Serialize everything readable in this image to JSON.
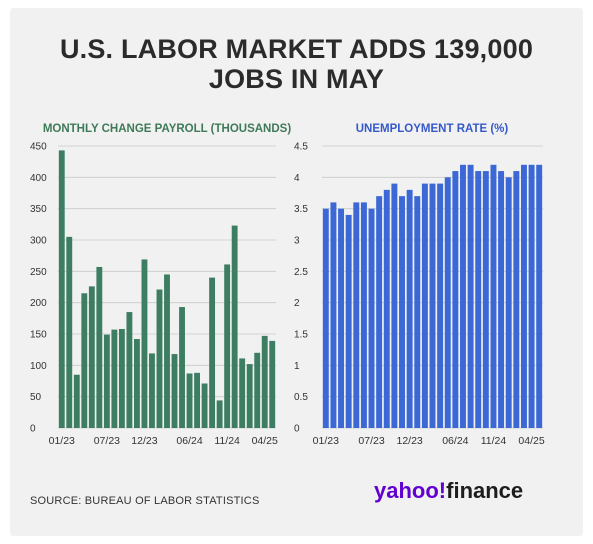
{
  "title_line1": "U.S. LABOR MARKET ADDS 139,000",
  "title_line2": "JOBS IN MAY",
  "source": "SOURCE: BUREAU OF LABOR STATISTICS",
  "logo": {
    "part1": "yahoo",
    "mark": "!",
    "part2": "finance"
  },
  "colors": {
    "payroll": "#3d7d62",
    "unemployment": "#3c68d6",
    "payroll_title": "#3f7a58",
    "unemployment_title": "#3659c9"
  },
  "chart_data": [
    {
      "type": "bar",
      "title": "MONTHLY CHANGE PAYROLL (THOUSANDS)",
      "ylim": [
        0,
        450
      ],
      "yticks": [
        "0",
        "50",
        "100",
        "150",
        "200",
        "250",
        "300",
        "350",
        "400",
        "450"
      ],
      "xticks": [
        "01/23",
        "07/23",
        "12/23",
        "06/24",
        "11/24",
        "04/25"
      ],
      "grid": true,
      "series": [
        {
          "values": [
            443,
            305,
            85,
            215,
            226,
            257,
            149,
            157,
            158,
            185,
            142,
            269,
            119,
            221,
            245,
            118,
            193,
            87,
            88,
            71,
            240,
            44,
            261,
            323,
            111,
            102,
            120,
            147,
            139
          ]
        }
      ]
    },
    {
      "type": "bar",
      "title": "UNEMPLOYMENT RATE (%)",
      "ylim": [
        0,
        4.5
      ],
      "yticks": [
        "0",
        "0.5",
        "1",
        "1.5",
        "2",
        "2.5",
        "3",
        "3.5",
        "4",
        "4.5"
      ],
      "xticks": [
        "01/23",
        "07/23",
        "12/23",
        "06/24",
        "11/24",
        "04/25"
      ],
      "grid": true,
      "series": [
        {
          "values": [
            3.5,
            3.6,
            3.5,
            3.4,
            3.6,
            3.6,
            3.5,
            3.7,
            3.8,
            3.9,
            3.7,
            3.8,
            3.7,
            3.9,
            3.9,
            3.9,
            4.0,
            4.1,
            4.2,
            4.2,
            4.1,
            4.1,
            4.2,
            4.1,
            4.0,
            4.1,
            4.2,
            4.2,
            4.2
          ]
        }
      ]
    }
  ]
}
